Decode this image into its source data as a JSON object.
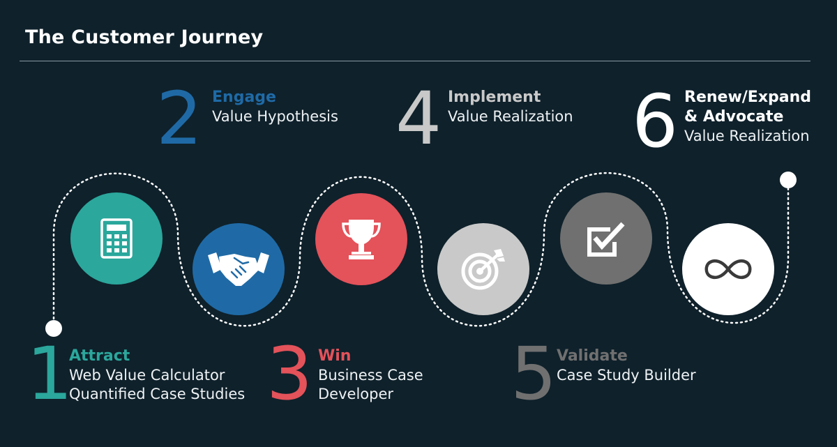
{
  "title": "The Customer Journey",
  "colors": {
    "background": "#0f212b",
    "attract": "#2ba79c",
    "engage": "#1f6aa6",
    "win": "#e4525a",
    "implement": "#c9c9c9",
    "validate": "#707070",
    "renew": "#ffffff"
  },
  "stages": [
    {
      "number": "1",
      "name": "Attract",
      "lines": [
        "Web Value Calculator",
        "Quantified Case Studies"
      ],
      "icon": "calculator-icon"
    },
    {
      "number": "2",
      "name": "Engage",
      "lines": [
        "Value Hypothesis"
      ],
      "icon": "handshake-icon"
    },
    {
      "number": "3",
      "name": "Win",
      "lines": [
        "Business Case",
        "Developer"
      ],
      "icon": "trophy-icon"
    },
    {
      "number": "4",
      "name": "Implement",
      "lines": [
        "Value Realization"
      ],
      "icon": "target-icon"
    },
    {
      "number": "5",
      "name": "Validate",
      "lines": [
        "Case Study Builder"
      ],
      "icon": "checkbox-icon"
    },
    {
      "number": "6",
      "name": "Renew/Expand",
      "name2": "& Advocate",
      "lines": [
        "Value Realization"
      ],
      "icon": "infinity-icon"
    }
  ]
}
